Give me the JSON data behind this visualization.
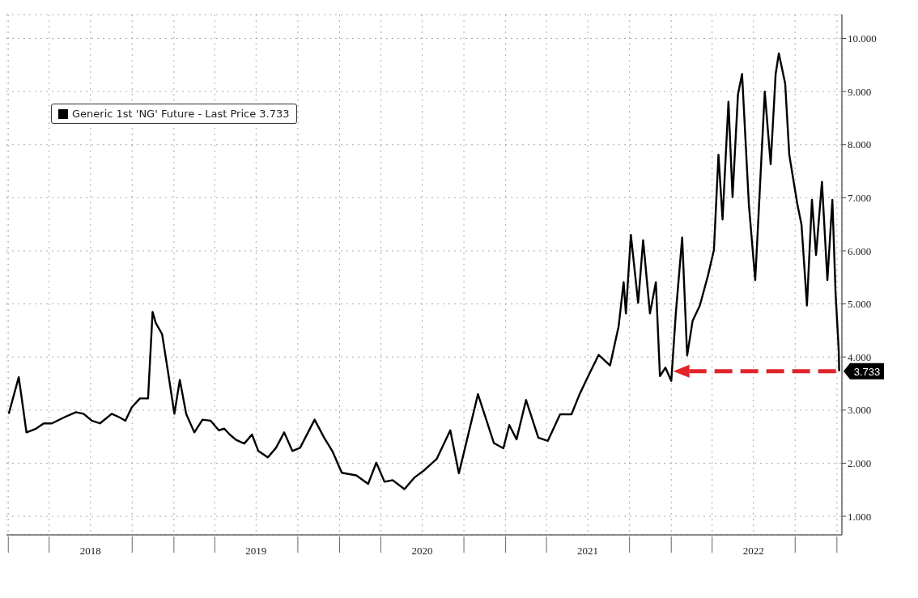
{
  "chart_data": {
    "type": "line",
    "x": [
      "2018-01-02",
      "2018-01-24",
      "2018-01-31",
      "2018-02-10",
      "2018-03-03",
      "2018-03-20",
      "2018-04-07",
      "2018-05-03",
      "2018-05-30",
      "2018-06-16",
      "2018-07-04",
      "2018-07-22",
      "2018-08-17",
      "2018-09-04",
      "2018-09-16",
      "2018-09-30",
      "2018-10-18",
      "2018-11-05",
      "2018-11-15",
      "2018-11-22",
      "2018-12-06",
      "2018-12-19",
      "2019-01-02",
      "2019-01-14",
      "2019-01-28",
      "2019-02-15",
      "2019-03-05",
      "2019-03-23",
      "2019-04-10",
      "2019-04-22",
      "2019-05-04",
      "2019-05-18",
      "2019-06-05",
      "2019-06-22",
      "2019-07-06",
      "2019-07-27",
      "2019-08-14",
      "2019-09-01",
      "2019-09-19",
      "2019-10-06",
      "2019-11-07",
      "2019-11-28",
      "2019-12-16",
      "2020-01-06",
      "2020-02-07",
      "2020-03-04",
      "2020-03-22",
      "2020-04-09",
      "2020-04-27",
      "2020-05-23",
      "2020-06-14",
      "2020-07-06",
      "2020-08-02",
      "2020-09-01",
      "2020-09-20",
      "2020-11-01",
      "2020-12-06",
      "2020-12-27",
      "2021-01-09",
      "2021-01-25",
      "2021-02-15",
      "2021-03-14",
      "2021-04-04",
      "2021-05-01",
      "2021-05-26",
      "2021-06-13",
      "2021-07-02",
      "2021-07-25",
      "2021-08-19",
      "2021-09-07",
      "2021-09-18",
      "2021-09-23",
      "2021-10-04",
      "2021-10-20",
      "2021-10-31",
      "2021-11-15",
      "2021-11-28",
      "2021-12-07",
      "2021-12-19",
      "2022-01-01",
      "2022-01-11",
      "2022-01-25",
      "2022-02-05",
      "2022-02-17",
      "2022-03-05",
      "2022-03-23",
      "2022-04-05",
      "2022-04-15",
      "2022-04-24",
      "2022-05-07",
      "2022-05-16",
      "2022-05-28",
      "2022-06-06",
      "2022-06-21",
      "2022-07-05",
      "2022-07-14",
      "2022-07-26",
      "2022-08-08",
      "2022-08-19",
      "2022-08-26",
      "2022-09-09",
      "2022-09-18",
      "2022-10-06",
      "2022-10-15",
      "2022-10-27",
      "2022-11-07",
      "2022-11-16",
      "2022-11-29",
      "2022-12-11",
      "2022-12-22",
      "2022-12-29",
      "2023-01-05",
      "2023-01-06"
    ],
    "series": [
      {
        "name": "Generic 1st 'NG' Future - Last Price 3.733",
        "color": "#000000",
        "values": [
          2.93,
          3.62,
          3.2,
          2.58,
          2.65,
          2.75,
          2.75,
          2.86,
          2.96,
          2.93,
          2.8,
          2.75,
          2.93,
          2.86,
          2.8,
          3.05,
          3.22,
          3.22,
          4.85,
          4.64,
          4.43,
          3.72,
          2.93,
          3.57,
          2.93,
          2.58,
          2.82,
          2.8,
          2.62,
          2.65,
          2.54,
          2.44,
          2.37,
          2.54,
          2.23,
          2.11,
          2.29,
          2.58,
          2.23,
          2.29,
          2.82,
          2.48,
          2.23,
          1.82,
          1.77,
          1.61,
          2.01,
          1.65,
          1.68,
          1.51,
          1.73,
          1.87,
          2.08,
          2.62,
          1.81,
          3.3,
          2.38,
          2.28,
          2.72,
          2.45,
          3.19,
          2.48,
          2.42,
          2.92,
          2.92,
          3.3,
          3.64,
          4.04,
          3.84,
          4.58,
          5.41,
          4.82,
          6.3,
          5.02,
          6.2,
          4.82,
          5.41,
          3.64,
          3.8,
          3.55,
          4.82,
          6.25,
          4.03,
          4.68,
          4.97,
          5.54,
          6.02,
          7.81,
          6.59,
          8.81,
          7.01,
          8.95,
          9.33,
          6.87,
          5.45,
          6.96,
          9.0,
          7.63,
          9.33,
          9.72,
          9.15,
          7.81,
          6.87,
          6.49,
          4.97,
          6.96,
          5.92,
          7.3,
          5.45,
          6.96,
          5.21,
          4.12,
          3.733
        ]
      }
    ],
    "xlim": [
      "2017-12-28",
      "2023-01-12"
    ],
    "xticks": [
      {
        "value": "2018-01-01",
        "label": null
      },
      {
        "value": "2018-04-01",
        "label": null
      },
      {
        "value": "2018-07-01",
        "label": "2018"
      },
      {
        "value": "2018-10-01",
        "label": null
      },
      {
        "value": "2019-01-01",
        "label": null
      },
      {
        "value": "2019-04-01",
        "label": null
      },
      {
        "value": "2019-07-01",
        "label": "2019"
      },
      {
        "value": "2019-10-01",
        "label": null
      },
      {
        "value": "2020-01-01",
        "label": null
      },
      {
        "value": "2020-04-01",
        "label": null
      },
      {
        "value": "2020-07-01",
        "label": "2020"
      },
      {
        "value": "2020-10-01",
        "label": null
      },
      {
        "value": "2021-01-01",
        "label": null
      },
      {
        "value": "2021-04-01",
        "label": null
      },
      {
        "value": "2021-07-01",
        "label": "2021"
      },
      {
        "value": "2021-10-01",
        "label": null
      },
      {
        "value": "2022-01-01",
        "label": null
      },
      {
        "value": "2022-04-01",
        "label": null
      },
      {
        "value": "2022-07-01",
        "label": "2022"
      },
      {
        "value": "2022-10-01",
        "label": null
      },
      {
        "value": "2023-01-01",
        "label": null
      }
    ],
    "ylim": [
      0.65,
      10.45
    ],
    "yticks": [
      {
        "value": 1,
        "label": "1.000"
      },
      {
        "value": 2,
        "label": "2.000"
      },
      {
        "value": 3,
        "label": "3.000"
      },
      {
        "value": 4,
        "label": "4.000"
      },
      {
        "value": 5,
        "label": "5.000"
      },
      {
        "value": 6,
        "label": "6.000"
      },
      {
        "value": 7,
        "label": "7.000"
      },
      {
        "value": 8,
        "label": "8.000"
      },
      {
        "value": 9,
        "label": "9.000"
      },
      {
        "value": 10,
        "label": "10.000"
      }
    ],
    "annotations": [
      {
        "text": "3.733",
        "x": "2023-01-06",
        "y": 3.733
      }
    ],
    "grid": true,
    "legend": "top left",
    "line_style": "solid",
    "marker": "none"
  }
}
